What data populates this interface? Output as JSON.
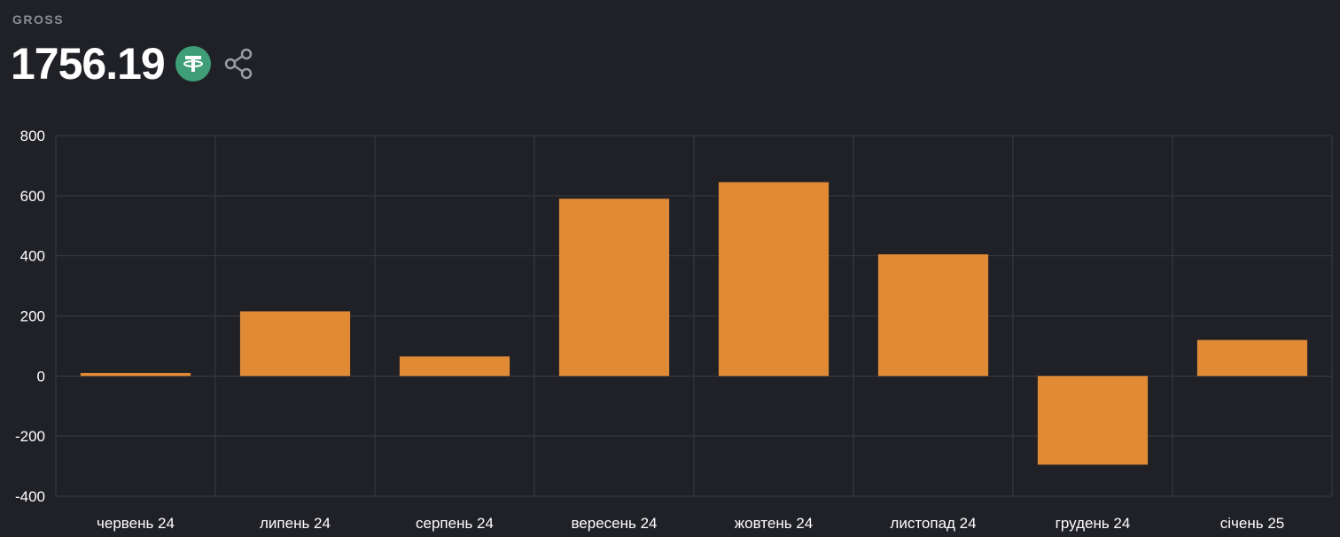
{
  "header": {
    "label": "GROSS",
    "value": "1756.19",
    "token_icon": "tether-icon",
    "share_icon": "share-icon"
  },
  "colors": {
    "background": "#202126",
    "bar": "#e08a36",
    "grid": "#3a3b42",
    "token": "#3f9e78"
  },
  "chart_data": {
    "type": "bar",
    "categories": [
      "червень 24",
      "липень 24",
      "серпень 24",
      "вересень 24",
      "жовтень 24",
      "листопад 24",
      "грудень 24",
      "січень 25"
    ],
    "series": [
      {
        "values": [
          10,
          215,
          65,
          590,
          645,
          405,
          -295,
          120
        ]
      }
    ],
    "yticks": [
      800,
      600,
      400,
      200,
      0,
      -200,
      -400
    ],
    "ylim": [
      -400,
      800
    ],
    "grid": true,
    "title": "",
    "xlabel": "",
    "ylabel": ""
  }
}
